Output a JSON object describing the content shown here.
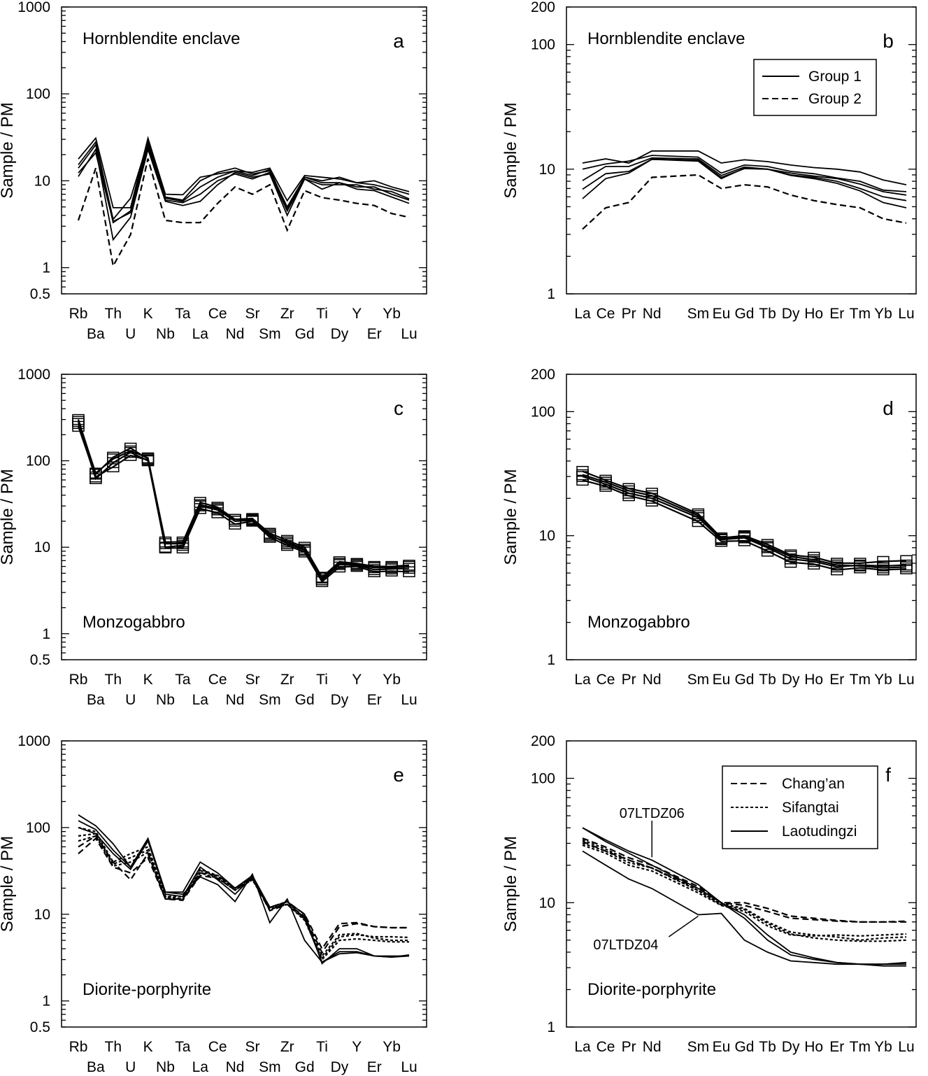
{
  "chart_data": [
    {
      "id": "a",
      "type": "line",
      "panel_label": "a",
      "title": "Hornblendite enclave",
      "title_position": "top-left",
      "ylabel": "Sample / PM",
      "yscale": "log",
      "ylim": [
        0.5,
        1000
      ],
      "yticks": [
        "1000",
        "100",
        "10",
        "1",
        "0.5"
      ],
      "categories": [
        "Rb",
        "Ba",
        "Th",
        "U",
        "K",
        "Nb",
        "Ta",
        "La",
        "Ce",
        "Nd",
        "Sr",
        "Sm",
        "Zr",
        "Gd",
        "Ti",
        "Dy",
        "Y",
        "Er",
        "Yb",
        "Lu"
      ],
      "markers": "none",
      "series": [
        {
          "style": "solid",
          "values": [
            17.8,
            31,
            4.9,
            4.9,
            31,
            7,
            6.9,
            11,
            12,
            13,
            12.5,
            14,
            5.9,
            11.5,
            11,
            10.5,
            9.5,
            10,
            8.5,
            7.5
          ]
        },
        {
          "style": "solid",
          "values": [
            15.3,
            28,
            3.6,
            6.3,
            28,
            6.5,
            6,
            10,
            12.5,
            14,
            12,
            13,
            5,
            11,
            10,
            11,
            9.5,
            9,
            8,
            7
          ]
        },
        {
          "style": "solid",
          "values": [
            12.3,
            21,
            3.4,
            4.3,
            25,
            6,
            5.6,
            7,
            10,
            12,
            10.5,
            12.5,
            4.5,
            10.5,
            9,
            9,
            9,
            8,
            7.5,
            6.2
          ]
        },
        {
          "style": "solid",
          "values": [
            11.2,
            23,
            2.1,
            3.8,
            23,
            5.8,
            5.2,
            5.8,
            9,
            12.5,
            11,
            12,
            4,
            10.5,
            8,
            9.5,
            8,
            7.7,
            6.5,
            5.5
          ]
        },
        {
          "style": "solid",
          "values": [
            14,
            26,
            3.3,
            4.5,
            27,
            6.3,
            5.8,
            8.5,
            11,
            13,
            11.5,
            13.5,
            4.8,
            11,
            9.5,
            9.5,
            8.5,
            8.5,
            7,
            6
          ]
        },
        {
          "style": "dashed",
          "values": [
            3.5,
            14,
            1.05,
            2.4,
            18,
            3.5,
            3.3,
            3.3,
            5.5,
            8.5,
            7,
            9,
            2.7,
            7.7,
            6.4,
            6,
            5.5,
            5.2,
            4.2,
            3.8
          ]
        }
      ]
    },
    {
      "id": "b",
      "type": "line",
      "panel_label": "b",
      "title": "Hornblendite enclave",
      "title_position": "top-left",
      "ylabel": "Sample / PM",
      "yscale": "log",
      "ylim": [
        1,
        200
      ],
      "yticks": [
        "200",
        "100",
        "10",
        "1"
      ],
      "categories": [
        "La",
        "Ce",
        "Pr",
        "Nd",
        "Sm",
        "Eu",
        "Gd",
        "Tb",
        "Dy",
        "Ho",
        "Er",
        "Tm",
        "Yb",
        "Lu"
      ],
      "markers": "none",
      "legend": {
        "position": "top-right",
        "entries": [
          {
            "label": "Group 1",
            "style": "solid"
          },
          {
            "label": "Group 2",
            "style": "dashed"
          }
        ]
      },
      "series": [
        {
          "group": "Group 1",
          "style": "solid",
          "values": [
            11.2,
            12.1,
            11.2,
            14,
            14,
            11.2,
            11.9,
            11.5,
            10.8,
            10.3,
            10,
            9.5,
            8.2,
            7.5
          ]
        },
        {
          "group": "Group 1",
          "style": "solid",
          "values": [
            10,
            11,
            11.6,
            12.9,
            12.5,
            9.3,
            10.8,
            10.5,
            9.6,
            9.2,
            8.5,
            8,
            6.8,
            6.6
          ]
        },
        {
          "group": "Group 1",
          "style": "solid",
          "values": [
            8.1,
            10.5,
            10.5,
            12.3,
            12.1,
            8.9,
            10.4,
            10,
            9.3,
            8.8,
            8.4,
            7.6,
            6.6,
            6.2
          ]
        },
        {
          "group": "Group 1",
          "style": "solid",
          "values": [
            6.9,
            9.2,
            9.6,
            12,
            11.8,
            8.6,
            10.1,
            10,
            9,
            8.6,
            8,
            7,
            6,
            5.6
          ]
        },
        {
          "group": "Group 1",
          "style": "solid",
          "values": [
            5.8,
            8.4,
            9.3,
            12,
            11.6,
            8.4,
            10.2,
            10,
            8.9,
            8.4,
            7.7,
            6.7,
            5.4,
            4.9
          ]
        },
        {
          "group": "Group 2",
          "style": "dashed",
          "values": [
            3.3,
            4.9,
            5.4,
            8.6,
            9,
            7,
            7.5,
            7.2,
            6.2,
            5.6,
            5.2,
            4.9,
            4,
            3.7
          ]
        }
      ]
    },
    {
      "id": "c",
      "type": "line",
      "panel_label": "c",
      "title": "Monzogabbro",
      "title_position": "bottom-left",
      "ylabel": "Sample / PM",
      "yscale": "log",
      "ylim": [
        0.5,
        1000
      ],
      "yticks": [
        "1000",
        "100",
        "10",
        "1",
        "0.5"
      ],
      "categories": [
        "Rb",
        "Ba",
        "Th",
        "U",
        "K",
        "Nb",
        "Ta",
        "La",
        "Ce",
        "Nd",
        "Sr",
        "Sm",
        "Zr",
        "Gd",
        "Ti",
        "Dy",
        "Y",
        "Er",
        "Yb",
        "Lu"
      ],
      "markers": "open-square",
      "series": [
        {
          "style": "solid",
          "values": [
            300,
            70,
            110,
            140,
            105,
            11.5,
            11.5,
            33,
            29,
            21,
            21.5,
            14.5,
            12,
            10,
            4.5,
            6.8,
            6.5,
            6,
            6,
            6.2
          ]
        },
        {
          "style": "solid",
          "values": [
            270,
            62,
            95,
            125,
            100,
            10,
            10.5,
            30,
            27,
            20,
            20.5,
            13.5,
            11.5,
            9.5,
            4.2,
            6.3,
            6.2,
            5.5,
            5.6,
            5.7
          ]
        },
        {
          "style": "solid",
          "values": [
            250,
            65,
            85,
            115,
            102,
            9.8,
            9.8,
            28,
            25,
            18.5,
            20,
            13,
            10.5,
            8.8,
            4,
            5.9,
            6,
            5.2,
            5.3,
            5.2
          ]
        },
        {
          "style": "solid",
          "values": [
            285,
            72,
            105,
            130,
            108,
            11,
            11,
            31,
            28,
            21,
            21,
            14,
            11,
            9.2,
            4.4,
            6.5,
            6.3,
            5.8,
            5.8,
            6
          ]
        }
      ]
    },
    {
      "id": "d",
      "type": "line",
      "panel_label": "d",
      "title": "Monzogabbro",
      "title_position": "bottom-left",
      "ylabel": "Sample / PM",
      "yscale": "log",
      "ylim": [
        1,
        200
      ],
      "yticks": [
        "200",
        "100",
        "10",
        "1"
      ],
      "categories": [
        "La",
        "Ce",
        "Pr",
        "Nd",
        "Sm",
        "Eu",
        "Gd",
        "Tb",
        "Dy",
        "Ho",
        "Er",
        "Tm",
        "Yb",
        "Lu"
      ],
      "markers": "open-square",
      "series": [
        {
          "style": "solid",
          "values": [
            33,
            28,
            24,
            22,
            15,
            9.6,
            10,
            8.5,
            7,
            6.7,
            6,
            6,
            6.2,
            6.3
          ]
        },
        {
          "style": "solid",
          "values": [
            30,
            26,
            22,
            20,
            14,
            9.3,
            9.6,
            8,
            6.5,
            6.2,
            5.6,
            5.8,
            5.7,
            5.8
          ]
        },
        {
          "style": "solid",
          "values": [
            28,
            25,
            21,
            19,
            13,
            9,
            9.1,
            7.5,
            6.1,
            5.9,
            5.3,
            5.5,
            5.3,
            5.4
          ]
        },
        {
          "style": "solid",
          "values": [
            31,
            27,
            23,
            21,
            14.5,
            9.4,
            9.8,
            8.2,
            6.8,
            6.4,
            5.8,
            5.7,
            5.5,
            5.6
          ]
        }
      ]
    },
    {
      "id": "e",
      "type": "line",
      "panel_label": "e",
      "title": "Diorite-porphyrite",
      "title_position": "bottom-left",
      "ylabel": "Sample / PM",
      "yscale": "log",
      "ylim": [
        0.5,
        1000
      ],
      "yticks": [
        "1000",
        "100",
        "10",
        "1",
        "0.5"
      ],
      "categories": [
        "Rb",
        "Ba",
        "Th",
        "U",
        "K",
        "Nb",
        "Ta",
        "La",
        "Ce",
        "Nd",
        "Sr",
        "Sm",
        "Zr",
        "Gd",
        "Ti",
        "Dy",
        "Y",
        "Er",
        "Yb",
        "Lu"
      ],
      "markers": "none",
      "series": [
        {
          "group": "Laotudingzi",
          "style": "solid",
          "values": [
            140,
            105,
            65,
            35,
            75,
            18,
            18,
            40,
            30,
            20,
            28,
            12,
            14,
            10,
            2.7,
            4,
            4,
            3.3,
            3.2,
            3.3
          ]
        },
        {
          "group": "Laotudingzi",
          "style": "solid",
          "values": [
            100,
            85,
            50,
            33,
            70,
            18,
            17,
            27,
            22,
            14,
            29,
            8,
            15,
            5,
            2.8,
            3.5,
            3.6,
            3.3,
            3.2,
            3.4
          ]
        },
        {
          "group": "Laotudingzi",
          "style": "solid",
          "values": [
            120,
            95,
            55,
            35,
            72,
            17,
            16,
            35,
            25,
            17,
            27,
            11,
            14,
            9,
            2.8,
            3.7,
            3.7,
            3.3,
            3.3,
            3.3
          ]
        },
        {
          "group": "Chang'an",
          "style": "dashed",
          "values": [
            60,
            80,
            40,
            25,
            50,
            15,
            15,
            30,
            28,
            20,
            27,
            12,
            14,
            10,
            4,
            7.8,
            8,
            7.2,
            7,
            7
          ]
        },
        {
          "group": "Chang'an",
          "style": "dashed",
          "values": [
            50,
            75,
            35,
            30,
            45,
            15,
            14.5,
            28,
            26,
            19,
            26,
            11,
            13,
            9.5,
            3.6,
            7.2,
            7.8,
            7.2,
            7,
            7
          ]
        },
        {
          "group": "Sifangtai",
          "style": "dotted",
          "values": [
            100,
            90,
            40,
            50,
            60,
            16,
            16,
            33,
            28,
            20,
            26,
            12,
            14,
            9,
            3.3,
            5.8,
            6,
            5.3,
            5,
            5
          ]
        },
        {
          "group": "Sifangtai",
          "style": "dotted",
          "values": [
            80,
            85,
            38,
            45,
            55,
            16,
            15,
            32,
            27,
            19,
            25,
            12,
            13,
            8.5,
            3.1,
            5.5,
            5.8,
            5.5,
            5.5,
            5.4
          ]
        },
        {
          "group": "Sifangtai",
          "style": "dotted",
          "values": [
            70,
            80,
            36,
            40,
            52,
            15.5,
            15,
            30,
            26,
            19,
            25,
            11.5,
            13,
            8.8,
            3,
            5,
            5.2,
            5,
            4.8,
            4.8
          ]
        }
      ]
    },
    {
      "id": "f",
      "type": "line",
      "panel_label": "f",
      "title": "Diorite-porphyrite",
      "title_position": "bottom-left",
      "ylabel": "Sample / PM",
      "yscale": "log",
      "ylim": [
        1,
        200
      ],
      "yticks": [
        "200",
        "100",
        "10",
        "1"
      ],
      "categories": [
        "La",
        "Ce",
        "Pr",
        "Nd",
        "Sm",
        "Eu",
        "Gd",
        "Tb",
        "Dy",
        "Ho",
        "Er",
        "Tm",
        "Yb",
        "Lu"
      ],
      "markers": "none",
      "legend": {
        "position": "top-right",
        "entries": [
          {
            "label": "Chang’an",
            "style": "dashed"
          },
          {
            "label": "Sifangtai",
            "style": "dotted"
          },
          {
            "label": "Laotudingzi",
            "style": "solid"
          }
        ]
      },
      "annotations": [
        {
          "text": "07LTDZ06",
          "points_to": "Nd"
        },
        {
          "text": "07LTDZ04",
          "points_to": "Sm"
        }
      ],
      "series": [
        {
          "group": "Laotudingzi",
          "sample": "07LTDZ06",
          "style": "solid",
          "values": [
            40,
            32,
            26,
            22,
            14,
            10,
            8,
            5.5,
            4,
            3.6,
            3.3,
            3.2,
            3.2,
            3.3
          ]
        },
        {
          "group": "Laotudingzi",
          "sample": "07LTDZ04",
          "style": "solid",
          "values": [
            26,
            20,
            15.5,
            13,
            8,
            8.2,
            5,
            4,
            3.4,
            3.3,
            3.2,
            3.2,
            3.1,
            3.1
          ]
        },
        {
          "group": "Laotudingzi",
          "style": "solid",
          "values": [
            40,
            31,
            25,
            20,
            13,
            10,
            7.5,
            5,
            3.8,
            3.5,
            3.3,
            3.2,
            3.2,
            3.2
          ]
        },
        {
          "group": "Chang'an",
          "style": "dashed",
          "values": [
            33,
            28,
            23,
            20,
            13.5,
            10,
            10,
            9,
            7.8,
            7.5,
            7.2,
            7,
            7,
            7.1
          ]
        },
        {
          "group": "Chang'an",
          "style": "dashed",
          "values": [
            31,
            26,
            22,
            19,
            13,
            10,
            9.5,
            8.5,
            7.5,
            7.3,
            7.1,
            7,
            7,
            7
          ]
        },
        {
          "group": "Sifangtai",
          "style": "dotted",
          "values": [
            30,
            26,
            21,
            19,
            12.5,
            9.8,
            9,
            7,
            5.8,
            5.5,
            5.3,
            5,
            5.2,
            5.3
          ]
        },
        {
          "group": "Sifangtai",
          "style": "dotted",
          "values": [
            29,
            25,
            20,
            18,
            12,
            9.5,
            8.5,
            6.5,
            5.5,
            5.4,
            5.5,
            5.4,
            5.5,
            5.6
          ]
        },
        {
          "group": "Sifangtai",
          "style": "dotted",
          "values": [
            32,
            27,
            22,
            19,
            12.5,
            9.6,
            8.8,
            6.8,
            5.6,
            5.2,
            5,
            4.9,
            4.9,
            5
          ]
        }
      ]
    }
  ]
}
